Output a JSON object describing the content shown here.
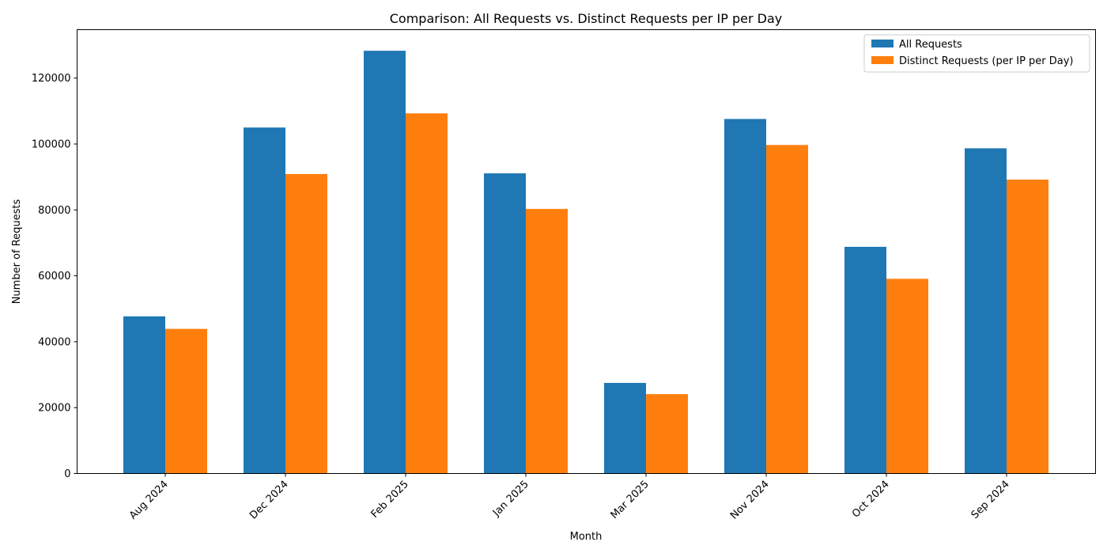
{
  "chart_data": {
    "type": "bar",
    "title": "Comparison: All Requests vs. Distinct Requests per IP per Day",
    "xlabel": "Month",
    "ylabel": "Number of Requests",
    "categories": [
      "Aug 2024",
      "Dec 2024",
      "Feb 2025",
      "Jan 2025",
      "Mar 2025",
      "Nov 2024",
      "Oct 2024",
      "Sep 2024"
    ],
    "series": [
      {
        "name": "All Requests",
        "color": "#1f77b4",
        "values": [
          47700,
          105000,
          128300,
          91100,
          27500,
          107600,
          68800,
          98700
        ]
      },
      {
        "name": "Distinct Requests (per IP per Day)",
        "color": "#ff7f0e",
        "values": [
          43900,
          90900,
          109300,
          80300,
          24100,
          99700,
          59100,
          89200
        ]
      }
    ],
    "ylim": [
      0,
      134700
    ],
    "yticks": [
      0,
      20000,
      40000,
      60000,
      80000,
      100000,
      120000
    ],
    "grid": false,
    "legend": "top-right"
  }
}
